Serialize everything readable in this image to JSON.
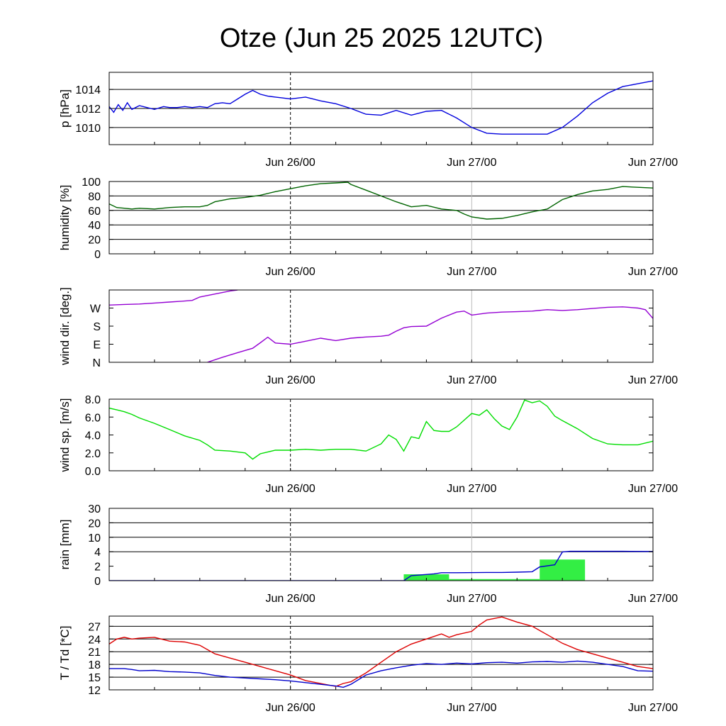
{
  "title": "Otze (Jun 25 2025 12UTC)",
  "x_tick_labels": [
    "Jun 26/00",
    "Jun 27/00"
  ],
  "chart_data": [
    {
      "id": "pressure",
      "type": "line",
      "ylabel": "p [hPa]",
      "ylim": [
        1008.2,
        1015.8
      ],
      "yticks": [
        1010,
        1012,
        1014
      ],
      "ytick_labels": [
        "1010",
        "1012",
        "1014"
      ],
      "xlim": [
        0,
        36
      ],
      "series": [
        {
          "color": "#0000dd",
          "x": [
            0,
            0.3,
            0.6,
            0.9,
            1.2,
            1.5,
            2,
            2.5,
            3,
            3.6,
            4,
            4.5,
            5,
            5.5,
            6,
            6.5,
            7,
            7.5,
            8,
            8.5,
            9,
            9.5,
            10,
            10.5,
            11,
            11.5,
            12,
            13,
            14,
            15,
            16,
            17,
            18,
            19,
            20,
            21,
            22,
            23,
            24,
            25,
            26,
            27,
            28,
            29,
            30,
            31,
            32,
            33,
            34,
            35,
            36
          ],
          "values": [
            1012.2,
            1011.6,
            1012.4,
            1011.8,
            1012.6,
            1011.9,
            1012.3,
            1012.1,
            1011.9,
            1012.2,
            1012.1,
            1012.1,
            1012.2,
            1012.1,
            1012.2,
            1012.1,
            1012.5,
            1012.6,
            1012.5,
            1013.0,
            1013.5,
            1013.9,
            1013.5,
            1013.3,
            1013.2,
            1013.1,
            1013.0,
            1013.2,
            1012.8,
            1012.5,
            1012.0,
            1011.4,
            1011.3,
            1011.8,
            1011.3,
            1011.7,
            1011.8,
            1011.0,
            1010.0,
            1009.4,
            1009.3,
            1009.3,
            1009.3,
            1009.3,
            1010.0,
            1011.2,
            1012.6,
            1013.6,
            1014.3,
            1014.6,
            1014.9
          ]
        }
      ]
    },
    {
      "id": "humidity",
      "type": "line",
      "ylabel": "humidity [%]",
      "ylim": [
        0,
        100
      ],
      "yticks": [
        0,
        20,
        40,
        60,
        80,
        100
      ],
      "ytick_labels": [
        "0",
        "20",
        "40",
        "60",
        "80",
        "100"
      ],
      "xlim": [
        0,
        36
      ],
      "series": [
        {
          "color": "#006400",
          "x": [
            0,
            0.5,
            1,
            1.5,
            2,
            3,
            4,
            5,
            6,
            6.5,
            7,
            8,
            9,
            10,
            11,
            12,
            13,
            14,
            15,
            15.8,
            16,
            17,
            18,
            19,
            20,
            21,
            22,
            23,
            23.5,
            24,
            25,
            26,
            27,
            28,
            29,
            30,
            31,
            32,
            33,
            34,
            35,
            36
          ],
          "values": [
            69,
            64,
            63,
            62,
            63,
            62,
            64,
            65,
            65,
            67,
            72,
            76,
            78,
            81,
            86,
            90,
            94,
            97,
            98,
            99,
            96,
            88,
            80,
            72,
            65,
            67,
            62,
            60,
            55,
            51,
            48,
            49,
            53,
            58,
            62,
            75,
            82,
            87,
            89,
            93,
            92,
            91
          ]
        }
      ]
    },
    {
      "id": "wind_direction",
      "type": "line",
      "ylabel": "wind dir. [deg.]",
      "ylim": [
        0,
        360
      ],
      "yticks": [
        0,
        90,
        180,
        270
      ],
      "ytick_labels": [
        "N",
        "E",
        "S",
        "W"
      ],
      "xlim": [
        0,
        36
      ],
      "series": [
        {
          "color": "#9400d3",
          "x": [
            0,
            1,
            2,
            3,
            4,
            5,
            5.5,
            6,
            7,
            8,
            8.5
          ],
          "values": [
            285,
            288,
            290,
            295,
            300,
            305,
            308,
            325,
            340,
            355,
            360
          ]
        },
        {
          "color": "#9400d3",
          "x": [
            6.5,
            7.5,
            8.5,
            9.5,
            10,
            10.5,
            11,
            12,
            13,
            14,
            15,
            16,
            17,
            18,
            18.5,
            19,
            19.5,
            20,
            21,
            22,
            23,
            23.5,
            24,
            25,
            26,
            27,
            28,
            29,
            30,
            31,
            32,
            33,
            34,
            35,
            35.5,
            36
          ],
          "values": [
            0,
            25,
            48,
            70,
            97,
            125,
            96,
            90,
            105,
            120,
            108,
            120,
            126,
            130,
            135,
            155,
            172,
            178,
            180,
            220,
            250,
            255,
            235,
            245,
            250,
            252,
            255,
            262,
            258,
            262,
            268,
            274,
            276,
            270,
            262,
            218
          ]
        }
      ]
    },
    {
      "id": "wind_speed",
      "type": "line",
      "ylabel": "wind sp. [m/s]",
      "ylim": [
        0,
        8.0
      ],
      "yticks": [
        0,
        2,
        4,
        6,
        8
      ],
      "ytick_labels": [
        "0.0",
        "2.0",
        "4.0",
        "6.0",
        "8.0"
      ],
      "xlim": [
        0,
        36
      ],
      "series": [
        {
          "color": "#00dd00",
          "x": [
            0,
            0.5,
            1,
            1.5,
            2,
            3,
            4,
            5,
            6,
            6.5,
            7,
            8,
            9,
            9.5,
            10,
            11,
            12,
            13,
            14,
            15,
            16,
            17,
            18,
            18.5,
            19,
            19.5,
            20,
            20.5,
            21,
            21.5,
            22,
            22.5,
            23,
            24,
            24.5,
            25,
            25.5,
            26,
            26.5,
            27,
            27.5,
            28,
            28.5,
            29,
            29.5,
            30,
            31,
            32,
            33,
            34,
            35,
            36
          ],
          "values": [
            7.0,
            6.8,
            6.6,
            6.3,
            5.9,
            5.3,
            4.6,
            3.9,
            3.4,
            2.9,
            2.3,
            2.2,
            2.0,
            1.3,
            1.9,
            2.3,
            2.3,
            2.4,
            2.3,
            2.4,
            2.4,
            2.2,
            3.0,
            4.0,
            3.5,
            2.2,
            3.8,
            3.6,
            5.5,
            4.5,
            4.4,
            4.4,
            4.9,
            6.4,
            6.2,
            6.8,
            5.8,
            5.0,
            4.6,
            6.0,
            7.9,
            7.6,
            7.8,
            7.2,
            6.1,
            5.6,
            4.7,
            3.6,
            3.0,
            2.9,
            2.9,
            3.3
          ]
        }
      ]
    },
    {
      "id": "rain",
      "type": "bar",
      "ylabel": "rain [mm]",
      "ylim": [
        0,
        5
      ],
      "yticks": [
        0,
        1,
        2,
        3,
        4,
        5
      ],
      "ytick_labels": [
        "0",
        "2",
        "4",
        "10",
        "20",
        "30"
      ],
      "xlim": [
        0,
        36
      ],
      "bars": {
        "color": "#33ee44",
        "x_start": [
          19.5,
          22.5,
          28.5
        ],
        "x_end": [
          22.5,
          28.5,
          31.5
        ],
        "values": [
          0.44,
          0.11,
          1.46
        ]
      },
      "series": [
        {
          "color": "#0000cc",
          "x": [
            0,
            19.5,
            20,
            21.5,
            22,
            23,
            25,
            26,
            27,
            28,
            28.5,
            29.5,
            30,
            30.5,
            32,
            34,
            36
          ],
          "values": [
            0,
            0,
            0.35,
            0.47,
            0.55,
            0.55,
            0.57,
            0.57,
            0.59,
            0.62,
            0.95,
            1.1,
            1.98,
            2.03,
            2.03,
            2.03,
            2.02
          ]
        }
      ]
    },
    {
      "id": "temperature",
      "type": "line",
      "ylabel": "T / Td [*C]",
      "ylim": [
        12,
        29.4
      ],
      "yticks": [
        12,
        15,
        18,
        21,
        24,
        27
      ],
      "ytick_labels": [
        "12",
        "15",
        "18",
        "21",
        "24",
        "27"
      ],
      "xlim": [
        0,
        36
      ],
      "series": [
        {
          "color": "#dd0000",
          "x": [
            0,
            0.5,
            1,
            1.5,
            2,
            3,
            4,
            5,
            6,
            7,
            8,
            9,
            10,
            11,
            12,
            13,
            14,
            15,
            15.5,
            16,
            17,
            18,
            19,
            20,
            21,
            21.5,
            22,
            22.5,
            23,
            24,
            24.5,
            25,
            26,
            27,
            28,
            29,
            30,
            31,
            32,
            33,
            34,
            35,
            36
          ],
          "values": [
            22.8,
            24.0,
            24.4,
            24.0,
            24.2,
            24.4,
            23.5,
            23.3,
            22.5,
            20.5,
            19.5,
            18.5,
            17.5,
            16.5,
            15.5,
            14.2,
            13.5,
            12.8,
            13.5,
            13.9,
            16.0,
            18.5,
            21.0,
            22.8,
            24.0,
            24.6,
            25.2,
            24.4,
            25.0,
            25.8,
            27.3,
            28.5,
            29.2,
            28.0,
            27.0,
            25.0,
            23.0,
            21.5,
            20.5,
            19.5,
            18.5,
            17.5,
            17.0
          ]
        },
        {
          "color": "#0000cc",
          "x": [
            0,
            0.5,
            1,
            1.5,
            2,
            3,
            4,
            5,
            6,
            7,
            8,
            9,
            10,
            11,
            12,
            13,
            14,
            15,
            15.5,
            16,
            17,
            18,
            19,
            20,
            21,
            22,
            23,
            24,
            25,
            26,
            27,
            28,
            29,
            30,
            31,
            32,
            33,
            34,
            35,
            36
          ],
          "values": [
            17.0,
            17.0,
            17.0,
            16.8,
            16.5,
            16.6,
            16.3,
            16.2,
            16.0,
            15.4,
            15.0,
            14.8,
            14.6,
            14.4,
            14.1,
            13.7,
            13.3,
            12.9,
            12.6,
            13.3,
            15.5,
            16.5,
            17.2,
            17.8,
            18.2,
            18.0,
            18.3,
            18.1,
            18.4,
            18.5,
            18.3,
            18.6,
            18.7,
            18.5,
            18.8,
            18.5,
            18.0,
            17.5,
            16.5,
            16.4
          ]
        }
      ]
    }
  ]
}
